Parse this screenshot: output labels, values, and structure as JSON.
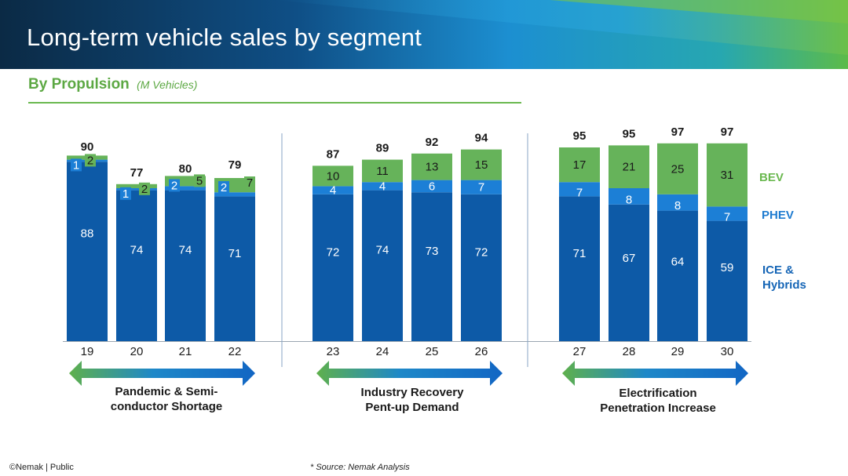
{
  "title": "Long-term vehicle sales by segment",
  "subtitle": {
    "label": "By Propulsion",
    "unit": "(M Vehicles)"
  },
  "colors": {
    "ice": "#0d5aa7",
    "phev": "#1c7fd6",
    "bev": "#66b35a",
    "navy": "#0b2a4a",
    "green": "#6ab84f"
  },
  "chart_data": {
    "type": "bar",
    "stacked": true,
    "categories": [
      "19",
      "20",
      "21",
      "22",
      "23",
      "24",
      "25",
      "26",
      "27",
      "28",
      "29",
      "30"
    ],
    "series": [
      {
        "name": "ICE & Hybrids",
        "values": [
          88,
          74,
          74,
          71,
          72,
          74,
          73,
          72,
          71,
          67,
          64,
          59
        ]
      },
      {
        "name": "PHEV",
        "values": [
          1,
          1,
          2,
          2,
          4,
          4,
          6,
          7,
          7,
          8,
          8,
          7
        ]
      },
      {
        "name": "BEV",
        "values": [
          2,
          2,
          5,
          7,
          10,
          11,
          13,
          15,
          17,
          21,
          25,
          31
        ]
      }
    ],
    "totals": [
      90,
      77,
      80,
      79,
      87,
      89,
      92,
      94,
      95,
      95,
      97,
      97
    ],
    "legend": [
      "BEV",
      "PHEV",
      "ICE & Hybrids"
    ],
    "ylabel": "M Vehicles"
  },
  "phases": [
    {
      "line1": "Pandemic & Semi-",
      "line2": "conductor Shortage"
    },
    {
      "line1": "Industry Recovery",
      "line2": "Pent-up Demand"
    },
    {
      "line1": "Electrification",
      "line2": "Penetration Increase"
    }
  ],
  "footer": {
    "left": "©Nemak | Public",
    "source": "* Source: Nemak Analysis"
  }
}
